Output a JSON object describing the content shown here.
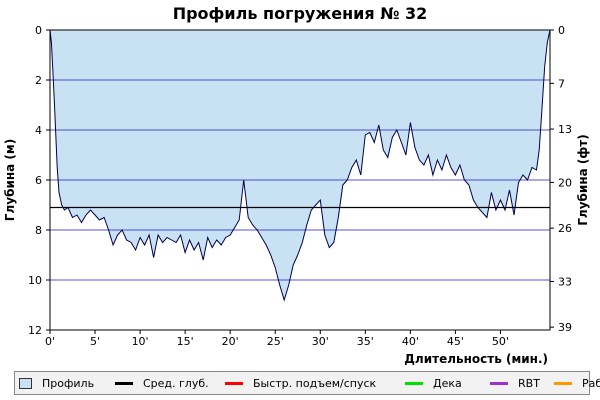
{
  "chart_data": {
    "type": "area",
    "title": "Профиль погружения № 32",
    "xlabel": "Длительность (мин.)",
    "ylabel_left": "Глубина (м)",
    "ylabel_right": "Глубина (фт)",
    "xlim": [
      0,
      55.5
    ],
    "ylim": [
      0,
      12
    ],
    "y_inverted": true,
    "grid": true,
    "x_ticks": [
      0,
      5,
      10,
      15,
      20,
      25,
      30,
      35,
      40,
      45,
      50
    ],
    "x_tick_labels": [
      "0'",
      "5'",
      "10'",
      "15'",
      "20'",
      "25'",
      "30'",
      "35'",
      "40'",
      "45'",
      "50'"
    ],
    "y_ticks_left": [
      0,
      2,
      4,
      6,
      8,
      10,
      12
    ],
    "y_tick_labels_left": [
      "0",
      "2",
      "4",
      "6",
      "8",
      "10",
      "12"
    ],
    "y_ticks_right_ft": [
      0,
      7,
      13,
      20,
      26,
      33,
      39
    ],
    "y_tick_labels_right": [
      "0",
      "7",
      "13",
      "20",
      "26",
      "33",
      "39"
    ],
    "average_depth": 7.1,
    "profile": {
      "name": "Профиль",
      "fill_color": "#c9e2f3",
      "line_color": "#00004a",
      "x": [
        0,
        0.15,
        0.3,
        0.5,
        0.8,
        1.0,
        1.3,
        1.6,
        2.0,
        2.5,
        3.0,
        3.5,
        4.0,
        4.5,
        5.0,
        5.5,
        6.0,
        6.5,
        7.0,
        7.5,
        8.0,
        8.5,
        9.0,
        9.5,
        10.0,
        10.5,
        11.0,
        11.5,
        12.0,
        12.5,
        13.0,
        13.5,
        14.0,
        14.5,
        15.0,
        15.5,
        16.0,
        16.5,
        17.0,
        17.5,
        18.0,
        18.5,
        19.0,
        19.5,
        20.0,
        20.5,
        21.0,
        21.5,
        22.0,
        22.5,
        23.0,
        23.5,
        24.0,
        24.5,
        25.0,
        25.5,
        26.0,
        26.5,
        27.0,
        27.5,
        28.0,
        28.5,
        29.0,
        29.5,
        30.0,
        30.5,
        31.0,
        31.5,
        32.0,
        32.5,
        33.0,
        33.5,
        34.0,
        34.5,
        35.0,
        35.5,
        36.0,
        36.5,
        37.0,
        37.5,
        38.0,
        38.5,
        39.0,
        39.5,
        40.0,
        40.5,
        41.0,
        41.5,
        42.0,
        42.5,
        43.0,
        43.5,
        44.0,
        44.5,
        45.0,
        45.5,
        46.0,
        46.5,
        47.0,
        47.5,
        48.0,
        48.5,
        49.0,
        49.5,
        50.0,
        50.5,
        51.0,
        51.5,
        52.0,
        52.5,
        53.0,
        53.5,
        54.0,
        54.3,
        54.6,
        54.9,
        55.2,
        55.5
      ],
      "y": [
        0.0,
        0.5,
        1.5,
        3.0,
        5.5,
        6.5,
        7.0,
        7.2,
        7.1,
        7.5,
        7.4,
        7.7,
        7.4,
        7.2,
        7.4,
        7.6,
        7.5,
        8.0,
        8.6,
        8.2,
        8.0,
        8.4,
        8.5,
        8.8,
        8.3,
        8.6,
        8.2,
        9.1,
        8.2,
        8.5,
        8.3,
        8.4,
        8.5,
        8.2,
        8.9,
        8.4,
        8.8,
        8.5,
        9.2,
        8.3,
        8.7,
        8.4,
        8.6,
        8.3,
        8.2,
        7.9,
        7.6,
        6.0,
        7.5,
        7.8,
        8.0,
        8.3,
        8.6,
        9.0,
        9.5,
        10.2,
        10.8,
        10.2,
        9.4,
        9.0,
        8.5,
        7.8,
        7.2,
        7.0,
        6.8,
        8.2,
        8.7,
        8.5,
        7.5,
        6.2,
        6.0,
        5.5,
        5.2,
        5.8,
        4.2,
        4.1,
        4.5,
        3.8,
        4.8,
        5.1,
        4.3,
        4.0,
        4.5,
        5.0,
        3.7,
        4.7,
        5.2,
        5.4,
        5.0,
        5.8,
        5.2,
        5.6,
        5.0,
        5.5,
        5.8,
        5.4,
        6.0,
        6.2,
        6.8,
        7.1,
        7.3,
        7.5,
        6.5,
        7.2,
        6.8,
        7.2,
        6.4,
        7.4,
        6.1,
        5.8,
        6.0,
        5.5,
        5.6,
        4.8,
        3.2,
        1.5,
        0.5,
        0.0
      ]
    }
  },
  "legend": {
    "items": [
      {
        "label": "Профиль",
        "swatch": "box",
        "color": "#c9e2f3"
      },
      {
        "label": "Сред. глуб.",
        "swatch": "line",
        "color": "#000000"
      },
      {
        "label": "Быстр. подъем/спуск",
        "swatch": "line",
        "color": "#ff0000"
      },
      {
        "label": "Дека",
        "swatch": "line",
        "color": "#00e000"
      },
      {
        "label": "RBT",
        "swatch": "line",
        "color": "#9933cc"
      },
      {
        "label": "Раб.",
        "swatch": "line",
        "color": "#ff9900"
      }
    ]
  },
  "colors": {
    "grid": "#1a1acc",
    "axis": "#000000",
    "avg_line": "#000000"
  }
}
